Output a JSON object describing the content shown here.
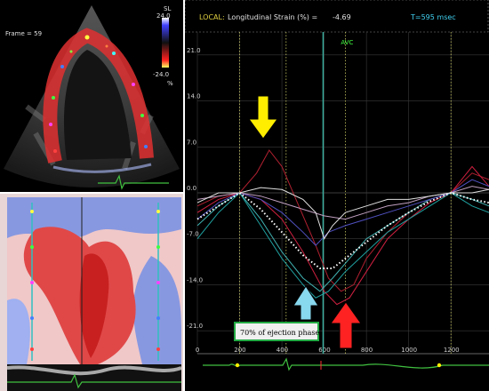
{
  "echo": {
    "frame_label": "Frame = 59",
    "scale_title": "SL",
    "scale_max": "24.0",
    "scale_min": "-24.0",
    "scale_unit": "%"
  },
  "header": {
    "local_label": "LOCAL:",
    "measure_label": "Longitudinal Strain (%) =",
    "measure_value": "-4.69",
    "time_label": "T=595 msec"
  },
  "avc_label": "AVC",
  "annotation": "70% of ejection phase",
  "colors": {
    "accent_yellow": "#ffee00",
    "accent_cyan": "#88d8ee",
    "accent_red": "#ff2222",
    "annotation_border": "#22aa44"
  },
  "chart_data": {
    "type": "line",
    "xlabel": "",
    "ylabel": "",
    "xlim": [
      0,
      1380
    ],
    "ylim": [
      -24.5,
      24.5
    ],
    "x_ticks": [
      "0",
      "200",
      "400",
      "600",
      "800",
      "1000",
      "1200"
    ],
    "y_ticks": [
      "21.0",
      "14.0",
      "7.0",
      "0.0",
      "-7.0",
      "-14.0",
      "-21.0"
    ],
    "markers": {
      "avc_x": 595,
      "dotted_x": [
        200,
        420,
        700,
        1200
      ]
    },
    "series": [
      {
        "color": "#b02030",
        "points": [
          [
            0,
            -2
          ],
          [
            100,
            -0.5
          ],
          [
            200,
            0
          ],
          [
            280,
            3
          ],
          [
            340,
            6.5
          ],
          [
            400,
            4
          ],
          [
            480,
            -2
          ],
          [
            560,
            -8
          ],
          [
            620,
            -13
          ],
          [
            680,
            -15
          ],
          [
            740,
            -14
          ],
          [
            800,
            -10
          ],
          [
            900,
            -6
          ],
          [
            1000,
            -3
          ],
          [
            1100,
            -1
          ],
          [
            1200,
            0
          ],
          [
            1300,
            3
          ],
          [
            1380,
            2
          ]
        ]
      },
      {
        "color": "#d02040",
        "points": [
          [
            0,
            -3
          ],
          [
            100,
            -1
          ],
          [
            200,
            0
          ],
          [
            300,
            -1
          ],
          [
            400,
            -4
          ],
          [
            500,
            -9
          ],
          [
            600,
            -15
          ],
          [
            660,
            -17
          ],
          [
            720,
            -16
          ],
          [
            800,
            -12
          ],
          [
            900,
            -7
          ],
          [
            1000,
            -4
          ],
          [
            1100,
            -1.5
          ],
          [
            1200,
            0
          ],
          [
            1300,
            4
          ],
          [
            1380,
            1
          ]
        ]
      },
      {
        "color": "#20a0a0",
        "points": [
          [
            0,
            -7
          ],
          [
            100,
            -3
          ],
          [
            200,
            0
          ],
          [
            300,
            -5
          ],
          [
            400,
            -10
          ],
          [
            500,
            -14
          ],
          [
            560,
            -16
          ],
          [
            620,
            -15
          ],
          [
            700,
            -12
          ],
          [
            800,
            -9
          ],
          [
            900,
            -6
          ],
          [
            1000,
            -4
          ],
          [
            1100,
            -2
          ],
          [
            1200,
            0
          ],
          [
            1300,
            -2
          ],
          [
            1380,
            -3
          ]
        ]
      },
      {
        "color": "#40b0b0",
        "points": [
          [
            0,
            -5
          ],
          [
            100,
            -2
          ],
          [
            200,
            0
          ],
          [
            300,
            -4
          ],
          [
            400,
            -9
          ],
          [
            500,
            -13
          ],
          [
            580,
            -15
          ],
          [
            640,
            -13
          ],
          [
            720,
            -10
          ],
          [
            800,
            -7
          ],
          [
            900,
            -5
          ],
          [
            1000,
            -3
          ],
          [
            1100,
            -1
          ],
          [
            1200,
            0
          ],
          [
            1300,
            -1
          ],
          [
            1380,
            -2
          ]
        ]
      },
      {
        "color": "#5050c0",
        "points": [
          [
            0,
            -4
          ],
          [
            100,
            -1.5
          ],
          [
            200,
            0
          ],
          [
            300,
            -1
          ],
          [
            400,
            -3
          ],
          [
            500,
            -6
          ],
          [
            560,
            -8
          ],
          [
            620,
            -6
          ],
          [
            700,
            -5
          ],
          [
            800,
            -4
          ],
          [
            900,
            -3
          ],
          [
            1000,
            -2
          ],
          [
            1100,
            -1
          ],
          [
            1200,
            0
          ],
          [
            1300,
            2
          ],
          [
            1380,
            1
          ]
        ]
      },
      {
        "color": "#c0a0c0",
        "points": [
          [
            0,
            -1
          ],
          [
            100,
            -0.5
          ],
          [
            200,
            0
          ],
          [
            300,
            -0.5
          ],
          [
            400,
            -1.5
          ],
          [
            500,
            -2.5
          ],
          [
            600,
            -3.5
          ],
          [
            700,
            -4
          ],
          [
            800,
            -3
          ],
          [
            900,
            -2
          ],
          [
            1000,
            -1.5
          ],
          [
            1100,
            -0.5
          ],
          [
            1200,
            0
          ],
          [
            1300,
            1
          ],
          [
            1380,
            0.5
          ]
        ]
      },
      {
        "color": "#e0e0e0",
        "points": [
          [
            0,
            -1.5
          ],
          [
            100,
            0
          ],
          [
            200,
            0
          ],
          [
            300,
            0.8
          ],
          [
            400,
            0.5
          ],
          [
            500,
            -1
          ],
          [
            560,
            -3
          ],
          [
            600,
            -7
          ],
          [
            640,
            -5
          ],
          [
            700,
            -3
          ],
          [
            800,
            -2
          ],
          [
            900,
            -1
          ],
          [
            1000,
            -1
          ],
          [
            1100,
            -0.5
          ],
          [
            1200,
            0
          ],
          [
            1300,
            0
          ],
          [
            1380,
            0.5
          ]
        ]
      }
    ],
    "mean_curve": {
      "color": "#ffffff",
      "points": [
        [
          0,
          -4
        ],
        [
          100,
          -2
        ],
        [
          200,
          0
        ],
        [
          300,
          -2.5
        ],
        [
          400,
          -6
        ],
        [
          500,
          -9.5
        ],
        [
          580,
          -11.5
        ],
        [
          640,
          -11.5
        ],
        [
          700,
          -10
        ],
        [
          800,
          -7.5
        ],
        [
          900,
          -5
        ],
        [
          1000,
          -3
        ],
        [
          1100,
          -1.3
        ],
        [
          1200,
          0
        ],
        [
          1300,
          -1
        ],
        [
          1380,
          -1.5
        ]
      ]
    }
  }
}
